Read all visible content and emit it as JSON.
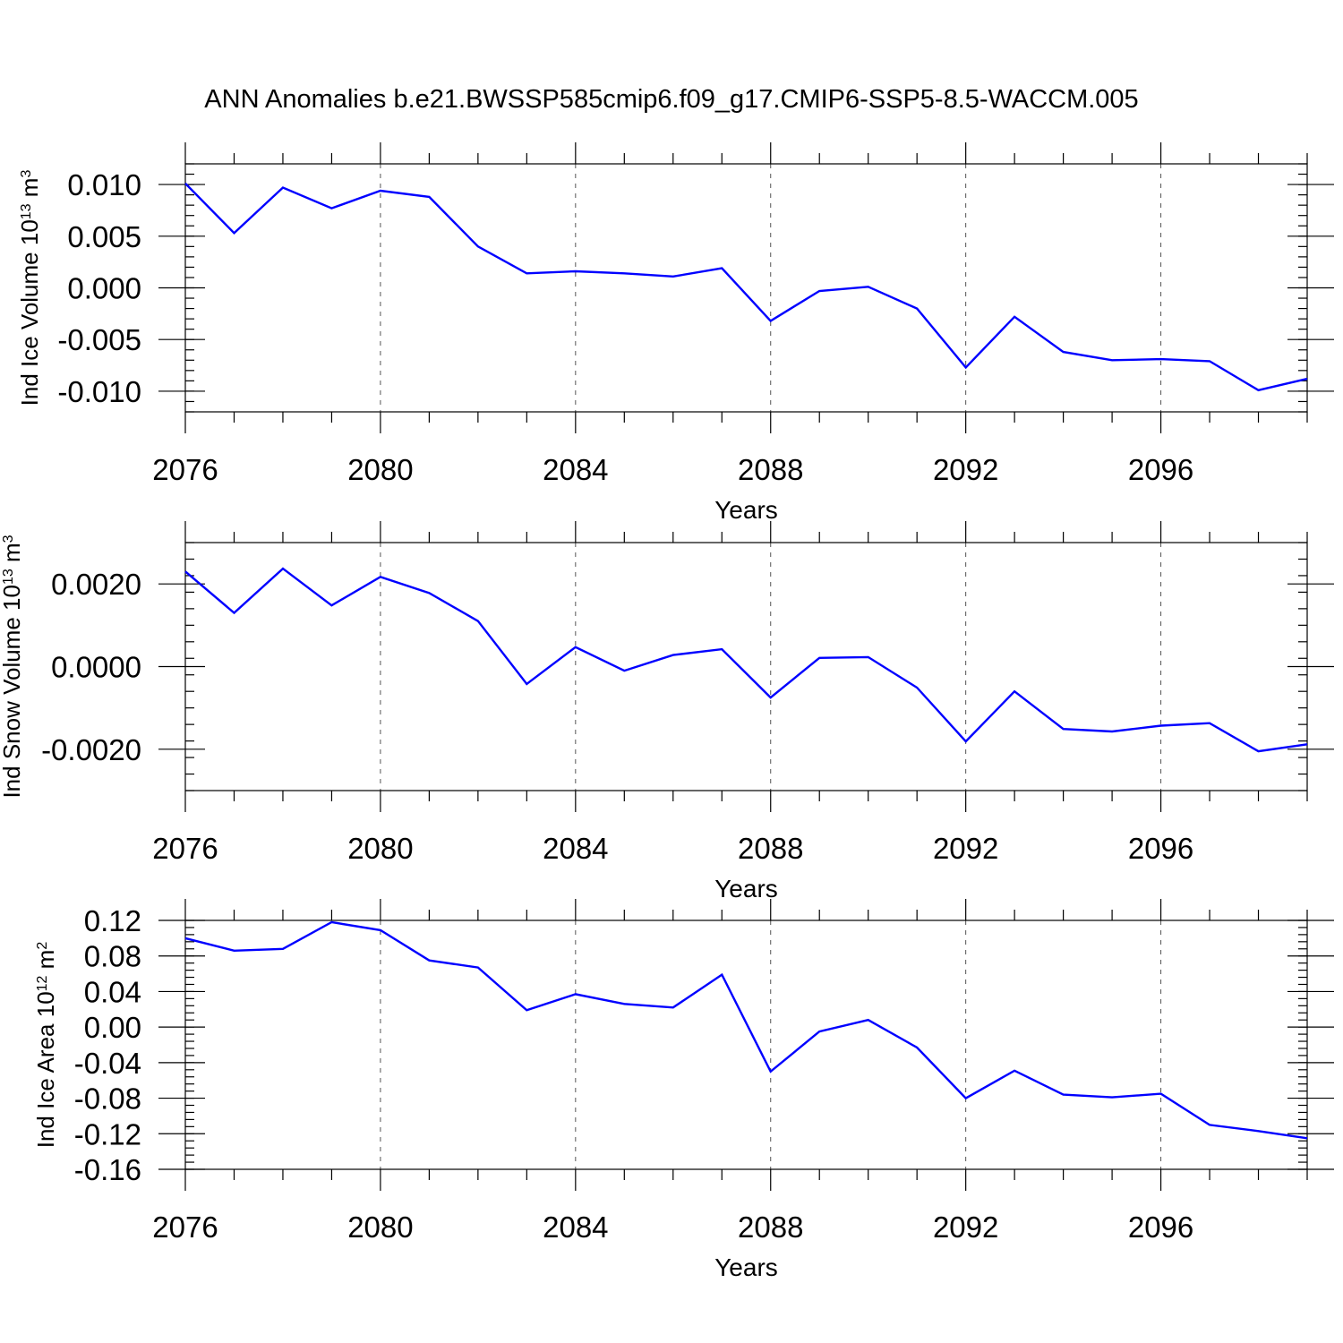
{
  "title": "ANN Anomalies b.e21.BWSSP585cmip6.f09_g17.CMIP6-SSP5-8.5-WACCM.005",
  "chart_data": [
    {
      "type": "line",
      "title": "ANN Anomalies b.e21.BWSSP585cmip6.f09_g17.CMIP6-SSP5-8.5-WACCM.005",
      "xlabel": "Years",
      "ylabel": {
        "main": "Ind Ice Volume 10",
        "exp": "13",
        "unit": " m",
        "unit_exp": "3"
      },
      "xlim": [
        2076,
        2099
      ],
      "ylim": [
        -0.012,
        0.012
      ],
      "xticks": [
        2076,
        2080,
        2084,
        2088,
        2092,
        2096
      ],
      "xtick_labels": [
        "2076",
        "2080",
        "2084",
        "2088",
        "2092",
        "2096"
      ],
      "yticks": [
        0.01,
        0.005,
        0.0,
        -0.005,
        -0.01
      ],
      "ytick_labels": [
        "0.010",
        "0.005",
        "0.000",
        "-0.005",
        "-0.010"
      ],
      "grid": "vertical dashed at major x ticks",
      "line_color": "#0000ff",
      "series": [
        {
          "x": [
            2076,
            2077,
            2078,
            2079,
            2080,
            2081,
            2082,
            2083,
            2084,
            2085,
            2086,
            2087,
            2088,
            2089,
            2090,
            2091,
            2092,
            2093,
            2094,
            2095,
            2096,
            2097,
            2098,
            2099
          ],
          "values": [
            0.0101,
            0.0053,
            0.0097,
            0.0077,
            0.0094,
            0.0088,
            0.004,
            0.0014,
            0.0016,
            0.0014,
            0.0011,
            0.0019,
            -0.0032,
            -0.0003,
            0.0001,
            -0.002,
            -0.0077,
            -0.0028,
            -0.0062,
            -0.007,
            -0.0069,
            -0.0071,
            -0.0099,
            -0.0088
          ]
        }
      ]
    },
    {
      "type": "line",
      "xlabel": "Years",
      "ylabel": {
        "main": "Ind Snow Volume 10",
        "exp": "13",
        "unit": " m",
        "unit_exp": "3"
      },
      "xlim": [
        2076,
        2099
      ],
      "ylim": [
        -0.003,
        0.003
      ],
      "xticks": [
        2076,
        2080,
        2084,
        2088,
        2092,
        2096
      ],
      "xtick_labels": [
        "2076",
        "2080",
        "2084",
        "2088",
        "2092",
        "2096"
      ],
      "yticks": [
        0.002,
        0.0,
        -0.002
      ],
      "ytick_labels": [
        "0.0020",
        "0.0000",
        "-0.0020"
      ],
      "grid": "vertical dashed at major x ticks",
      "line_color": "#0000ff",
      "series": [
        {
          "x": [
            2076,
            2077,
            2078,
            2079,
            2080,
            2081,
            2082,
            2083,
            2084,
            2085,
            2086,
            2087,
            2088,
            2089,
            2090,
            2091,
            2092,
            2093,
            2094,
            2095,
            2096,
            2097,
            2098,
            2099
          ],
          "values": [
            0.0023,
            0.0013,
            0.00237,
            0.00148,
            0.00217,
            0.00178,
            0.0011,
            -0.00042,
            0.00047,
            -0.0001,
            0.00028,
            0.00042,
            -0.00075,
            0.00021,
            0.00023,
            -0.00051,
            -0.00181,
            -0.0006,
            -0.00151,
            -0.00157,
            -0.00143,
            -0.00137,
            -0.00205,
            -0.00188
          ]
        }
      ]
    },
    {
      "type": "line",
      "xlabel": "Years",
      "ylabel": {
        "main": "Ind Ice Area 10",
        "exp": "12",
        "unit": " m",
        "unit_exp": "2"
      },
      "xlim": [
        2076,
        2099
      ],
      "ylim": [
        -0.16,
        0.12
      ],
      "xticks": [
        2076,
        2080,
        2084,
        2088,
        2092,
        2096
      ],
      "xtick_labels": [
        "2076",
        "2080",
        "2084",
        "2088",
        "2092",
        "2096"
      ],
      "yticks": [
        0.12,
        0.08,
        0.04,
        0.0,
        -0.04,
        -0.08,
        -0.12,
        -0.16
      ],
      "ytick_labels": [
        "0.12",
        "0.08",
        "0.04",
        "0.00",
        "-0.04",
        "-0.08",
        "-0.12",
        "-0.16"
      ],
      "grid": "vertical dashed at major x ticks",
      "line_color": "#0000ff",
      "series": [
        {
          "x": [
            2076,
            2077,
            2078,
            2079,
            2080,
            2081,
            2082,
            2083,
            2084,
            2085,
            2086,
            2087,
            2088,
            2089,
            2090,
            2091,
            2092,
            2093,
            2094,
            2095,
            2096,
            2097,
            2098,
            2099
          ],
          "values": [
            0.1,
            0.086,
            0.088,
            0.118,
            0.109,
            0.075,
            0.067,
            0.019,
            0.037,
            0.026,
            0.022,
            0.059,
            -0.05,
            -0.005,
            0.008,
            -0.023,
            -0.08,
            -0.049,
            -0.076,
            -0.079,
            -0.075,
            -0.11,
            -0.117,
            -0.125
          ]
        }
      ]
    }
  ]
}
